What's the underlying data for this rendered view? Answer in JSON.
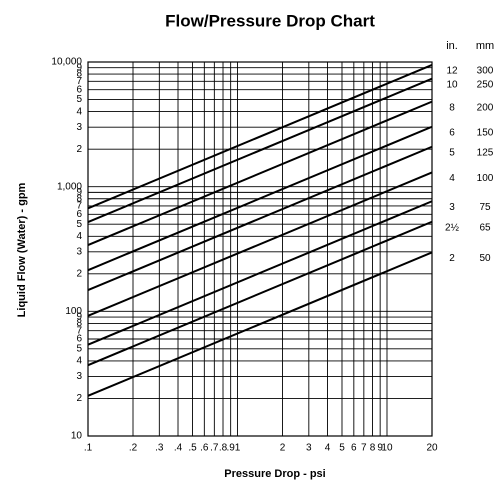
{
  "chart_data": {
    "type": "line",
    "title": "Flow/Pressure Drop Chart",
    "xlabel": "Pressure Drop - psi",
    "ylabel": "Liquid Flow (Water) - gpm",
    "log_x": true,
    "log_y": true,
    "grid": true,
    "legend_headers": [
      "in.",
      "mm"
    ],
    "x": [
      0.1,
      20
    ],
    "series": [
      {
        "name": "12",
        "mm": "300",
        "color": "#000000",
        "values": [
          670,
          9475
        ]
      },
      {
        "name": "10",
        "mm": "250",
        "color": "#000000",
        "values": [
          520,
          7350
        ]
      },
      {
        "name": "8",
        "mm": "200",
        "color": "#000000",
        "values": [
          340,
          4810
        ]
      },
      {
        "name": "6",
        "mm": "150",
        "color": "#000000",
        "values": [
          214,
          3025
        ]
      },
      {
        "name": "5",
        "mm": "125",
        "color": "#000000",
        "values": [
          148,
          2090
        ]
      },
      {
        "name": "4",
        "mm": "100",
        "color": "#000000",
        "values": [
          92,
          1300
        ]
      },
      {
        "name": "3",
        "mm": "75",
        "color": "#000000",
        "values": [
          54,
          764
        ]
      },
      {
        "name": "2½",
        "mm": "65",
        "color": "#000000",
        "values": [
          37,
          523
        ]
      },
      {
        "name": "2",
        "mm": "50",
        "color": "#000000",
        "values": [
          21,
          297
        ]
      }
    ],
    "xlim": [
      0.1,
      20
    ],
    "xticks": [
      {
        "value": 0.1,
        "label": ".1"
      },
      {
        "value": 0.2,
        "label": ".2"
      },
      {
        "value": 0.3,
        "label": ".3"
      },
      {
        "value": 0.4,
        "label": ".4"
      },
      {
        "value": 0.5,
        "label": ".5"
      },
      {
        "value": 0.6,
        "label": ".6"
      },
      {
        "value": 0.7,
        "label": ".7"
      },
      {
        "value": 0.8,
        "label": ".8"
      },
      {
        "value": 0.9,
        "label": ".9"
      },
      1,
      2,
      3,
      4,
      5,
      6,
      7,
      8,
      9,
      10,
      20
    ],
    "ylim": [
      10,
      10000
    ],
    "yticks": [
      10,
      {
        "value": 20,
        "label": "2"
      },
      {
        "value": 30,
        "label": "3"
      },
      {
        "value": 40,
        "label": "4"
      },
      {
        "value": 50,
        "label": "5"
      },
      {
        "value": 60,
        "label": "6"
      },
      {
        "value": 70,
        "label": "7"
      },
      {
        "value": 80,
        "label": "8"
      },
      {
        "value": 90,
        "label": "9"
      },
      100,
      {
        "value": 200,
        "label": "2"
      },
      {
        "value": 300,
        "label": "3"
      },
      {
        "value": 400,
        "label": "4"
      },
      {
        "value": 500,
        "label": "5"
      },
      {
        "value": 600,
        "label": "6"
      },
      {
        "value": 700,
        "label": "7"
      },
      {
        "value": 800,
        "label": "8"
      },
      {
        "value": 900,
        "label": "9"
      },
      {
        "value": 1000,
        "label": "1,000"
      },
      {
        "value": 2000,
        "label": "2"
      },
      {
        "value": 3000,
        "label": "3"
      },
      {
        "value": 4000,
        "label": "4"
      },
      {
        "value": 5000,
        "label": "5"
      },
      {
        "value": 6000,
        "label": "6"
      },
      {
        "value": 7000,
        "label": "7"
      },
      {
        "value": 8000,
        "label": "8"
      },
      {
        "value": 9000,
        "label": "9"
      },
      {
        "value": 10000,
        "label": "10,000"
      }
    ]
  }
}
